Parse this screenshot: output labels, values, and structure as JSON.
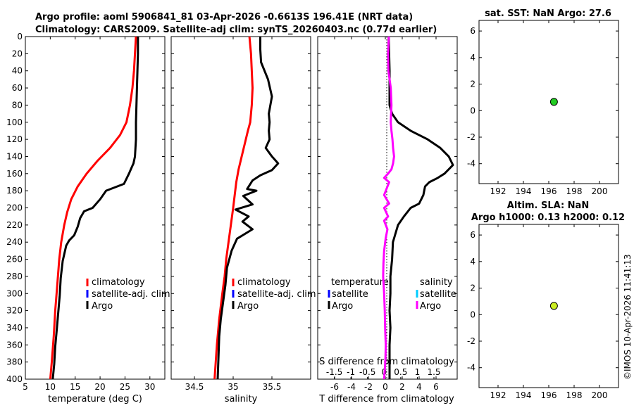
{
  "title_line1": "Argo profile: aoml 5906841_81 03-Apr-2026 -0.6613S 196.41E (NRT data)",
  "title_line2": "Climatology: CARS2009. Satellite-adj clim: synTS_20260403.nc (0.77d earlier)",
  "watermark": "©IMOS 10-Apr-2026 11:41:13",
  "colors": {
    "climatology": "#ff0000",
    "satellite": "#0000ff",
    "argo": "#000000",
    "sal_satellite": "#00ccff",
    "sal_diff": "#ff00ff",
    "dot_sst": "#22cc22",
    "dot_sla": "#ccee22"
  },
  "chart_data": [
    {
      "id": "temperature",
      "type": "line",
      "xlabel": "temperature (deg C)",
      "ylabel": "",
      "xlim": [
        5,
        33
      ],
      "ylim": [
        400,
        0
      ],
      "xticks": [
        5,
        10,
        15,
        20,
        25,
        30
      ],
      "yticks": [
        0,
        20,
        40,
        60,
        80,
        100,
        120,
        140,
        160,
        180,
        200,
        220,
        240,
        260,
        280,
        300,
        320,
        340,
        360,
        380,
        400
      ],
      "legend": [
        "climatology",
        "satellite-adj. clim",
        "Argo"
      ],
      "series": [
        {
          "name": "climatology",
          "color": "#ff0000",
          "x": [
            27.2,
            27.0,
            26.8,
            26.5,
            26.0,
            25.3,
            24.0,
            22.0,
            19.5,
            17.3,
            15.5,
            14.2,
            13.4,
            12.8,
            12.2,
            11.8,
            11.4,
            11.0,
            10.7,
            10.3,
            10.0
          ],
          "y": [
            0,
            20,
            40,
            60,
            80,
            100,
            115,
            130,
            145,
            160,
            175,
            190,
            205,
            220,
            240,
            260,
            290,
            320,
            350,
            380,
            400
          ]
        },
        {
          "name": "Argo",
          "color": "#000000",
          "x": [
            27.6,
            27.6,
            27.5,
            27.4,
            27.3,
            27.2,
            27.2,
            27.0,
            26.7,
            26.4,
            25.8,
            24.8,
            21.2,
            20.0,
            18.5,
            16.8,
            16.0,
            15.5,
            14.8,
            13.8,
            13.2,
            12.5,
            12.1,
            11.9,
            11.6,
            11.3,
            11.0,
            10.8,
            10.5
          ],
          "y": [
            0,
            20,
            40,
            60,
            80,
            100,
            120,
            140,
            148,
            152,
            160,
            172,
            180,
            190,
            200,
            204,
            212,
            222,
            232,
            238,
            244,
            262,
            282,
            302,
            322,
            342,
            362,
            382,
            400
          ]
        }
      ]
    },
    {
      "id": "salinity",
      "type": "line",
      "xlabel": "salinity",
      "ylabel": "",
      "xlim": [
        34.2,
        36.0
      ],
      "ylim": [
        400,
        0
      ],
      "xticks": [
        34.5,
        35,
        35.5
      ],
      "xtick_labels": [
        "34.5",
        "35",
        "35.5"
      ],
      "legend": [
        "climatology",
        "satellite-adj. clim",
        "Argo"
      ],
      "series": [
        {
          "name": "climatology",
          "color": "#ff0000",
          "x": [
            35.21,
            35.23,
            35.24,
            35.25,
            35.24,
            35.22,
            35.19,
            35.15,
            35.11,
            35.07,
            35.04,
            35.02,
            35.0,
            34.97,
            34.94,
            34.91,
            34.89,
            34.86,
            34.82,
            34.79,
            34.76
          ],
          "y": [
            0,
            20,
            40,
            60,
            80,
            100,
            110,
            125,
            140,
            155,
            170,
            185,
            200,
            220,
            240,
            260,
            280,
            300,
            330,
            360,
            400
          ]
        },
        {
          "name": "Argo",
          "color": "#000000",
          "x": [
            35.35,
            35.35,
            35.36,
            35.45,
            35.5,
            35.46,
            35.47,
            35.46,
            35.47,
            35.42,
            35.5,
            35.58,
            35.5,
            35.35,
            35.25,
            35.18,
            35.3,
            35.13,
            35.25,
            35.03,
            35.2,
            35.12,
            35.25,
            35.05,
            34.98,
            34.92,
            34.9,
            34.87,
            34.84,
            34.82,
            34.81,
            34.8
          ],
          "y": [
            0,
            15,
            30,
            50,
            70,
            90,
            100,
            110,
            120,
            130,
            140,
            148,
            156,
            162,
            168,
            178,
            180,
            186,
            196,
            202,
            210,
            216,
            225,
            236,
            250,
            270,
            290,
            310,
            330,
            350,
            375,
            400
          ]
        }
      ]
    },
    {
      "id": "difference",
      "type": "line",
      "xlabel": "T difference from climatology",
      "x2label": "S difference from climatology",
      "xlim": [
        -8,
        8.5
      ],
      "x2lim": [
        -2,
        2.2
      ],
      "ylim": [
        400,
        0
      ],
      "xticks": [
        -6,
        -4,
        -2,
        0,
        2,
        4,
        6
      ],
      "x2ticks": [
        -1.5,
        -1,
        -0.5,
        0,
        0.5,
        1,
        1.5
      ],
      "x2tick_labels": [
        "-1.5",
        "-1",
        "-0.5",
        "0",
        "0.5",
        "1",
        "1.5"
      ],
      "legend_titles": [
        "temperature",
        "salinity"
      ],
      "legend": [
        "satellite",
        "Argo",
        "satellite",
        "Argo"
      ],
      "series": [
        {
          "name": "T Argo",
          "color": "#000000",
          "axis": "x",
          "x": [
            0.4,
            0.5,
            0.5,
            0.8,
            1.5,
            3.0,
            5.0,
            6.5,
            7.5,
            8.0,
            7.0,
            6.2,
            5.2,
            4.7,
            4.5,
            4.0,
            3.0,
            2.2,
            1.5,
            1.2,
            0.9,
            0.8,
            0.6,
            0.6,
            0.5,
            0.6,
            0.5,
            0.5,
            0.5,
            0.5
          ],
          "y": [
            0,
            40,
            80,
            90,
            100,
            110,
            120,
            130,
            140,
            150,
            160,
            165,
            170,
            175,
            185,
            195,
            200,
            210,
            220,
            230,
            240,
            260,
            280,
            300,
            320,
            340,
            360,
            380,
            390,
            400
          ]
        },
        {
          "name": "S Argo",
          "color": "#ff00ff",
          "axis": "x2",
          "x": [
            0.14,
            0.12,
            0.13,
            0.2,
            0.22,
            0.21,
            0.2,
            0.22,
            0.25,
            0.27,
            0.3,
            0.27,
            0.22,
            0.12,
            0.0,
            0.15,
            0.0,
            0.15,
            0.0,
            0.12,
            0.0,
            0.1,
            0.05,
            0.0,
            -0.02,
            -0.03,
            0.0,
            0.02,
            0.03,
            0.05,
            0.04,
            0.02,
            0.0
          ],
          "y": [
            0,
            20,
            40,
            60,
            80,
            90,
            100,
            110,
            120,
            130,
            140,
            148,
            155,
            160,
            165,
            170,
            185,
            195,
            200,
            210,
            215,
            225,
            235,
            250,
            265,
            280,
            300,
            320,
            340,
            360,
            375,
            390,
            400
          ]
        }
      ]
    },
    {
      "id": "sst",
      "type": "scatter",
      "title": "sat. SST: NaN Argo: 27.6",
      "xlim": [
        190.5,
        201.5
      ],
      "ylim": [
        -5.5,
        6.8
      ],
      "xticks": [
        192,
        194,
        196,
        198,
        200
      ],
      "yticks": [
        -4,
        -2,
        0,
        2,
        4,
        6
      ],
      "points": [
        {
          "x": 196.41,
          "y": 0.66,
          "color": "#22cc22"
        }
      ]
    },
    {
      "id": "sla",
      "type": "scatter",
      "title": "Altim. SLA: NaN",
      "subtitle": "Argo h1000: 0.13 h2000: 0.12",
      "xlim": [
        190.5,
        201.5
      ],
      "ylim": [
        -5.5,
        6.8
      ],
      "xticks": [
        192,
        194,
        196,
        198,
        200
      ],
      "yticks": [
        -4,
        -2,
        0,
        2,
        4,
        6
      ],
      "points": [
        {
          "x": 196.41,
          "y": 0.66,
          "color": "#ccee22"
        }
      ]
    }
  ]
}
